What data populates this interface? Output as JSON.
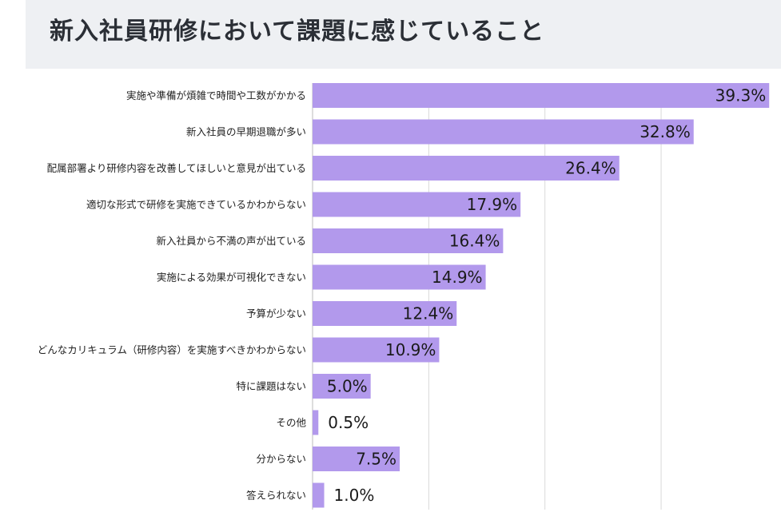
{
  "title": "新入社員研修において課題に感じていること",
  "colors": {
    "bar": "#b299ec",
    "grid": "#d9d9d9",
    "axis": "#bbbbbb",
    "title_bg": "#eef0f3"
  },
  "chart_data": {
    "type": "bar",
    "orientation": "horizontal",
    "title": "新入社員研修において課題に感じていること",
    "xlim": [
      0,
      40
    ],
    "grid": true,
    "unit": "%",
    "categories": [
      "実施や準備が煩雑で時間や工数がかかる",
      "新入社員の早期退職が多い",
      "配属部署より研修内容を改善してほしいと意見が出ている",
      "適切な形式で研修を実施できているかわからない",
      "新入社員から不満の声が出ている",
      "実施による効果が可視化できない",
      "予算が少ない",
      "どんなカリキュラム（研修内容）を実施すべきかわからない",
      "特に課題はない",
      "その他",
      "分からない",
      "答えられない"
    ],
    "values": [
      39.3,
      32.8,
      26.4,
      17.9,
      16.4,
      14.9,
      12.4,
      10.9,
      5.0,
      0.5,
      7.5,
      1.0
    ],
    "value_labels": [
      "39.3%",
      "32.8%",
      "26.4%",
      "17.9%",
      "16.4%",
      "14.9%",
      "12.4%",
      "10.9%",
      "5.0%",
      "0.5%",
      "7.5%",
      "1.0%"
    ]
  }
}
